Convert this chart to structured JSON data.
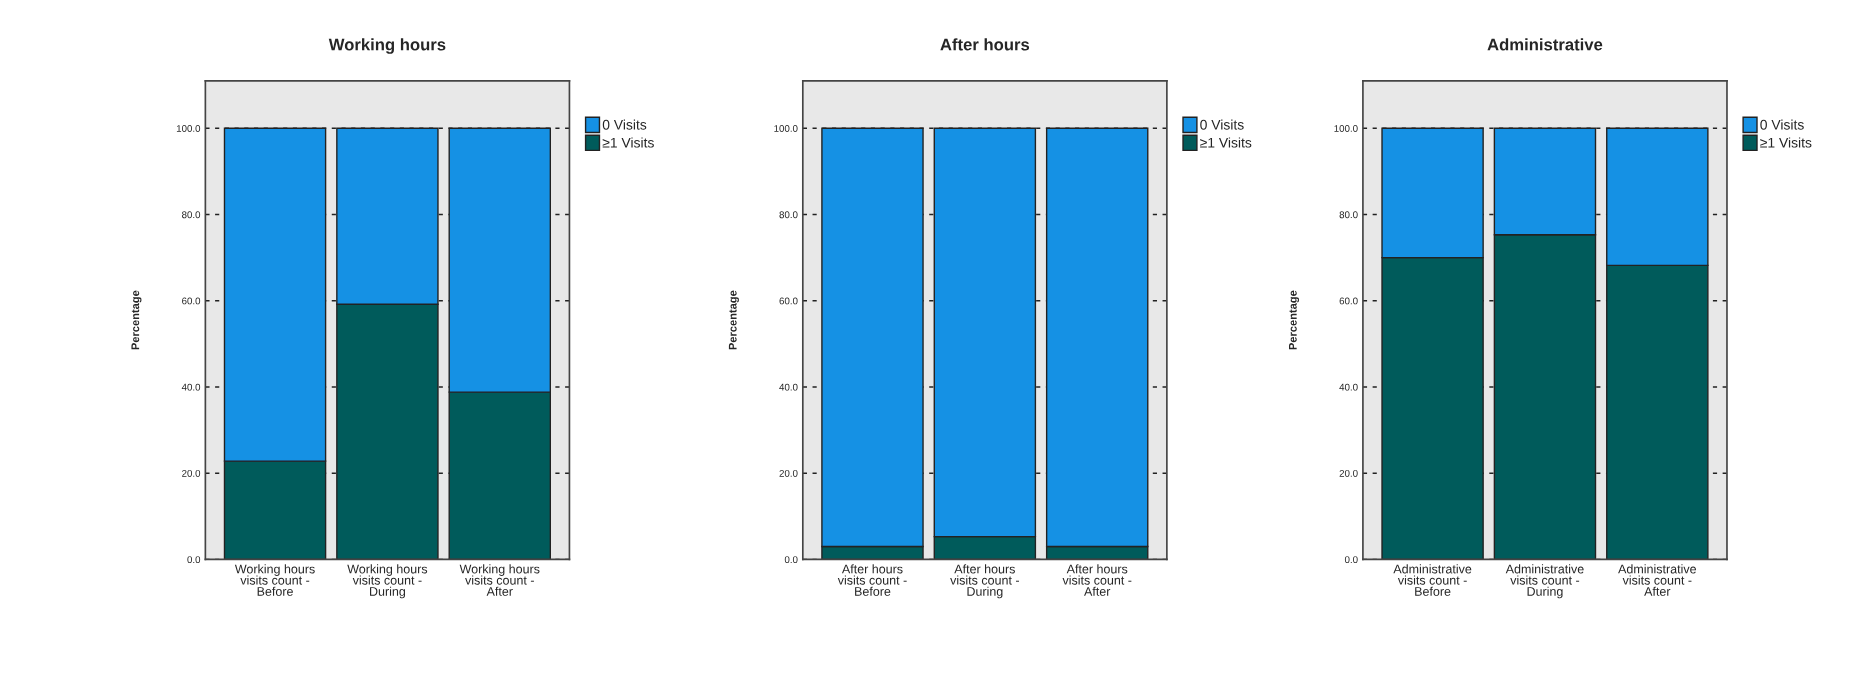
{
  "chart_data": [
    {
      "type": "bar",
      "title": "Working hours",
      "ylabel": "Percentage",
      "stacked": true,
      "categories": [
        "Working hours\nvisits count -\nBefore",
        "Working hours\nvisits count -\nDuring",
        "Working hours\nvisits count -\nAfter"
      ],
      "series": [
        {
          "name": "≥1 Visits",
          "color": "#005b5b",
          "values": [
            22.8,
            59.2,
            38.8
          ]
        },
        {
          "name": "0 Visits",
          "color": "#1591e4",
          "values": [
            77.2,
            40.8,
            61.2
          ]
        }
      ],
      "ylim": [
        0,
        111
      ],
      "yticks": [
        {
          "value": 0,
          "label": "0.0"
        },
        {
          "value": 20,
          "label": "20.0"
        },
        {
          "value": 40,
          "label": "40.0"
        },
        {
          "value": 60,
          "label": "60.0"
        },
        {
          "value": 80,
          "label": "80.0"
        },
        {
          "value": 100,
          "label": "100.0"
        }
      ],
      "grid": "y",
      "legend": "top right"
    },
    {
      "type": "bar",
      "title": "After hours",
      "ylabel": "Percentage",
      "stacked": true,
      "categories": [
        "After hours\nvisits count -\nBefore",
        "After hours\nvisits count -\nDuring",
        "After hours\nvisits count -\nAfter"
      ],
      "series": [
        {
          "name": "≥1 Visits",
          "color": "#005b5b",
          "values": [
            3.0,
            5.3,
            3.0
          ]
        },
        {
          "name": "0 Visits",
          "color": "#1591e4",
          "values": [
            97.0,
            94.7,
            97.0
          ]
        }
      ],
      "ylim": [
        0,
        111
      ],
      "yticks": [
        {
          "value": 0,
          "label": "0.0"
        },
        {
          "value": 20,
          "label": "20.0"
        },
        {
          "value": 40,
          "label": "40.0"
        },
        {
          "value": 60,
          "label": "60.0"
        },
        {
          "value": 80,
          "label": "80.0"
        },
        {
          "value": 100,
          "label": "100.0"
        }
      ],
      "grid": "y",
      "legend": "top right"
    },
    {
      "type": "bar",
      "title": "Administrative",
      "ylabel": "Percentage",
      "stacked": true,
      "categories": [
        "Administrative\nvisits count -\nBefore",
        "Administrative\nvisits count -\nDuring",
        "Administrative\nvisits count -\nAfter"
      ],
      "series": [
        {
          "name": "≥1 Visits",
          "color": "#005b5b",
          "values": [
            70.0,
            75.3,
            68.2
          ]
        },
        {
          "name": "0 Visits",
          "color": "#1591e4",
          "values": [
            30.0,
            24.7,
            31.8
          ]
        }
      ],
      "ylim": [
        0,
        111
      ],
      "yticks": [
        {
          "value": 0,
          "label": "0.0"
        },
        {
          "value": 20,
          "label": "20.0"
        },
        {
          "value": 40,
          "label": "40.0"
        },
        {
          "value": 60,
          "label": "60.0"
        },
        {
          "value": 80,
          "label": "80.0"
        },
        {
          "value": 100,
          "label": "100.0"
        }
      ],
      "grid": "y",
      "legend": "top right"
    }
  ]
}
